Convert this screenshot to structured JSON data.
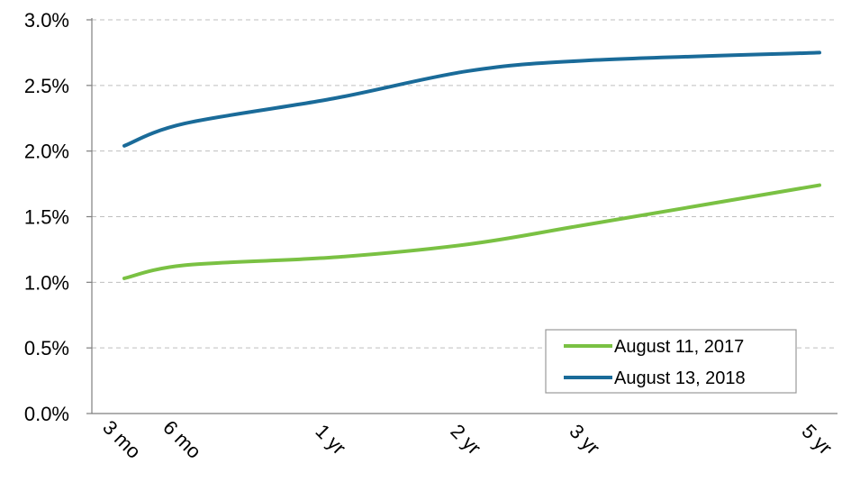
{
  "chart_data": {
    "type": "line",
    "title": "",
    "xlabel": "",
    "ylabel": "",
    "x": [
      0.25,
      0.5,
      1,
      2,
      3,
      5
    ],
    "x_tick_labels": [
      "3 mo",
      "6 mo",
      "1 yr",
      "2 yr",
      "3 yr",
      "5 yr"
    ],
    "ylim": [
      0,
      3.0
    ],
    "y_ticks": [
      0.0,
      0.5,
      1.0,
      1.5,
      2.0,
      2.5,
      3.0
    ],
    "y_tick_labels": [
      "0.0%",
      "0.5%",
      "1.0%",
      "1.5%",
      "2.0%",
      "2.5%",
      "3.0%"
    ],
    "grid": true,
    "legend_position": "bottom-right",
    "series": [
      {
        "name": "August 11, 2017",
        "color": "#7ac143",
        "points": [
          [
            0.25,
            1.03
          ],
          [
            0.5,
            1.13
          ],
          [
            1,
            1.19
          ],
          [
            2,
            1.29
          ],
          [
            3,
            1.44
          ],
          [
            5,
            1.74
          ]
        ]
      },
      {
        "name": "August 13, 2018",
        "color": "#1a6b99",
        "points": [
          [
            0.25,
            2.04
          ],
          [
            0.5,
            2.21
          ],
          [
            1,
            2.4
          ],
          [
            2,
            2.61
          ],
          [
            3,
            2.69
          ],
          [
            5,
            2.75
          ]
        ]
      }
    ]
  }
}
